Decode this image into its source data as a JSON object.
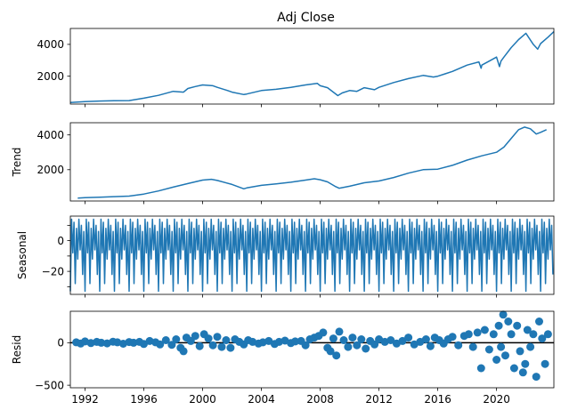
{
  "chart_data": [
    {
      "type": "line",
      "title": "Adj Close",
      "xlabel": "",
      "ylabel": "",
      "xlim": [
        1991.0,
        2023.9
      ],
      "ylim": [
        250,
        5000
      ],
      "yticks": [
        2000,
        4000
      ],
      "ytick_labels": [
        "2000",
        "4000"
      ],
      "series": [
        {
          "name": "Adj Close",
          "color": "#1f77b4",
          "x": [
            1991.0,
            1992.0,
            1993.0,
            1994.0,
            1995.0,
            1996.0,
            1997.0,
            1998.0,
            1998.7,
            1999.0,
            1999.5,
            2000.0,
            2000.7,
            2001.0,
            2001.7,
            2002.0,
            2002.8,
            2003.0,
            2004.0,
            2005.0,
            2006.0,
            2007.0,
            2007.8,
            2008.0,
            2008.5,
            2009.2,
            2009.5,
            2010.0,
            2010.5,
            2011.0,
            2011.7,
            2012.0,
            2013.0,
            2014.0,
            2015.0,
            2015.7,
            2016.0,
            2016.5,
            2017.0,
            2018.0,
            2018.8,
            2018.95,
            2019.0,
            2019.5,
            2020.0,
            2020.2,
            2020.3,
            2020.5,
            2021.0,
            2021.5,
            2022.0,
            2022.5,
            2022.8,
            2023.0,
            2023.5,
            2023.9
          ],
          "values": [
            350,
            400,
            440,
            460,
            470,
            620,
            800,
            1050,
            1000,
            1230,
            1350,
            1450,
            1400,
            1300,
            1100,
            1000,
            850,
            880,
            1100,
            1180,
            1300,
            1450,
            1550,
            1400,
            1280,
            780,
            950,
            1100,
            1050,
            1280,
            1150,
            1300,
            1600,
            1850,
            2050,
            1950,
            2000,
            2150,
            2300,
            2700,
            2900,
            2500,
            2700,
            2950,
            3200,
            2600,
            2950,
            3200,
            3800,
            4300,
            4700,
            4000,
            3700,
            4050,
            4450,
            4800
          ]
        }
      ]
    },
    {
      "type": "line",
      "title": "",
      "xlabel": "",
      "ylabel": "Trend",
      "xlim": [
        1991.0,
        2023.9
      ],
      "ylim": [
        200,
        4700
      ],
      "yticks": [
        2000,
        4000
      ],
      "ytick_labels": [
        "2000",
        "4000"
      ],
      "series": [
        {
          "name": "Trend",
          "color": "#1f77b4",
          "x": [
            1991.5,
            1992.0,
            1993.0,
            1994.0,
            1995.0,
            1996.0,
            1997.0,
            1998.0,
            1999.0,
            2000.0,
            2000.6,
            2001.0,
            2002.0,
            2002.8,
            2003.0,
            2004.0,
            2005.0,
            2006.0,
            2007.0,
            2007.6,
            2008.0,
            2008.5,
            2009.0,
            2009.3,
            2010.0,
            2011.0,
            2012.0,
            2013.0,
            2014.0,
            2015.0,
            2016.0,
            2017.0,
            2018.0,
            2019.0,
            2020.0,
            2020.5,
            2021.0,
            2021.5,
            2021.9,
            2022.3,
            2022.7,
            2023.0,
            2023.4
          ],
          "values": [
            370,
            390,
            420,
            450,
            480,
            600,
            780,
            1000,
            1200,
            1400,
            1450,
            1380,
            1150,
            900,
            950,
            1100,
            1180,
            1280,
            1400,
            1480,
            1420,
            1300,
            1050,
            930,
            1050,
            1250,
            1350,
            1550,
            1800,
            2000,
            2030,
            2250,
            2550,
            2800,
            3000,
            3300,
            3800,
            4300,
            4450,
            4350,
            4050,
            4150,
            4300
          ]
        }
      ]
    },
    {
      "type": "line",
      "title": "",
      "xlabel": "",
      "ylabel": "Seasonal",
      "xlim": [
        1991.0,
        2023.9
      ],
      "ylim": [
        -35,
        16
      ],
      "yticks": [
        -30,
        -20,
        -10,
        0,
        10
      ],
      "ytick_labels": [
        "",
        "−20",
        "",
        "0",
        ""
      ],
      "period_years": 1.0,
      "seasonal_pattern": [
        -33,
        14,
        -8,
        12,
        -28,
        8,
        -12,
        14,
        -6,
        10,
        -22,
        6
      ],
      "series": [
        {
          "name": "Seasonal",
          "color": "#1f77b4"
        }
      ]
    },
    {
      "type": "scatter",
      "title": "",
      "xlabel": "",
      "ylabel": "Resid",
      "xlim": [
        1991.0,
        2023.9
      ],
      "ylim": [
        -530,
        370
      ],
      "yticks": [
        -500,
        0
      ],
      "ytick_labels": [
        "−500",
        "0"
      ],
      "xticks": [
        1992,
        1996,
        2000,
        2004,
        2008,
        2012,
        2016,
        2020
      ],
      "xtick_labels": [
        "1992",
        "1996",
        "2000",
        "2004",
        "2008",
        "2012",
        "2016",
        "2020"
      ],
      "baseline": 0,
      "series": [
        {
          "name": "Resid",
          "color": "#1f77b4",
          "x": [
            1991.4,
            1991.7,
            1992.0,
            1992.4,
            1992.8,
            1993.1,
            1993.5,
            1993.9,
            1994.2,
            1994.6,
            1995.0,
            1995.3,
            1995.7,
            1996.0,
            1996.4,
            1996.8,
            1997.1,
            1997.5,
            1997.9,
            1998.2,
            1998.5,
            1998.7,
            1998.9,
            1999.2,
            1999.5,
            1999.8,
            2000.1,
            2000.4,
            2000.7,
            2001.0,
            2001.3,
            2001.6,
            2001.9,
            2002.2,
            2002.5,
            2002.8,
            2003.1,
            2003.4,
            2003.8,
            2004.1,
            2004.5,
            2004.9,
            2005.2,
            2005.6,
            2006.0,
            2006.3,
            2006.7,
            2007.0,
            2007.3,
            2007.6,
            2007.9,
            2008.2,
            2008.5,
            2008.7,
            2008.9,
            2009.1,
            2009.3,
            2009.6,
            2009.9,
            2010.2,
            2010.5,
            2010.8,
            2011.1,
            2011.4,
            2011.7,
            2012.0,
            2012.4,
            2012.8,
            2013.2,
            2013.6,
            2014.0,
            2014.4,
            2014.8,
            2015.2,
            2015.5,
            2015.8,
            2016.1,
            2016.4,
            2016.7,
            2017.0,
            2017.4,
            2017.8,
            2018.1,
            2018.4,
            2018.7,
            2018.95,
            2019.2,
            2019.5,
            2019.8,
            2020.0,
            2020.15,
            2020.3,
            2020.45,
            2020.6,
            2020.8,
            2021.0,
            2021.2,
            2021.4,
            2021.6,
            2021.8,
            2021.95,
            2022.1,
            2022.3,
            2022.5,
            2022.7,
            2022.9,
            2023.1,
            2023.3,
            2023.5
          ],
          "values": [
            5,
            -10,
            15,
            -5,
            10,
            0,
            -8,
            12,
            5,
            -12,
            8,
            0,
            10,
            -15,
            20,
            5,
            -20,
            30,
            -25,
            40,
            -60,
            -100,
            60,
            20,
            80,
            -40,
            100,
            50,
            -30,
            70,
            -50,
            30,
            -60,
            40,
            10,
            -20,
            30,
            10,
            -10,
            5,
            20,
            -15,
            10,
            25,
            -5,
            15,
            20,
            -30,
            40,
            60,
            80,
            120,
            -60,
            -100,
            50,
            -150,
            130,
            30,
            -50,
            60,
            -30,
            40,
            -70,
            20,
            -20,
            40,
            10,
            30,
            -10,
            20,
            60,
            -20,
            10,
            40,
            -40,
            60,
            30,
            -10,
            40,
            70,
            -30,
            80,
            100,
            -50,
            120,
            -300,
            150,
            -80,
            100,
            -200,
            200,
            -50,
            330,
            -150,
            250,
            100,
            -300,
            200,
            -100,
            -350,
            -250,
            150,
            -50,
            100,
            -400,
            250,
            50,
            -250,
            100
          ]
        }
      ]
    }
  ]
}
